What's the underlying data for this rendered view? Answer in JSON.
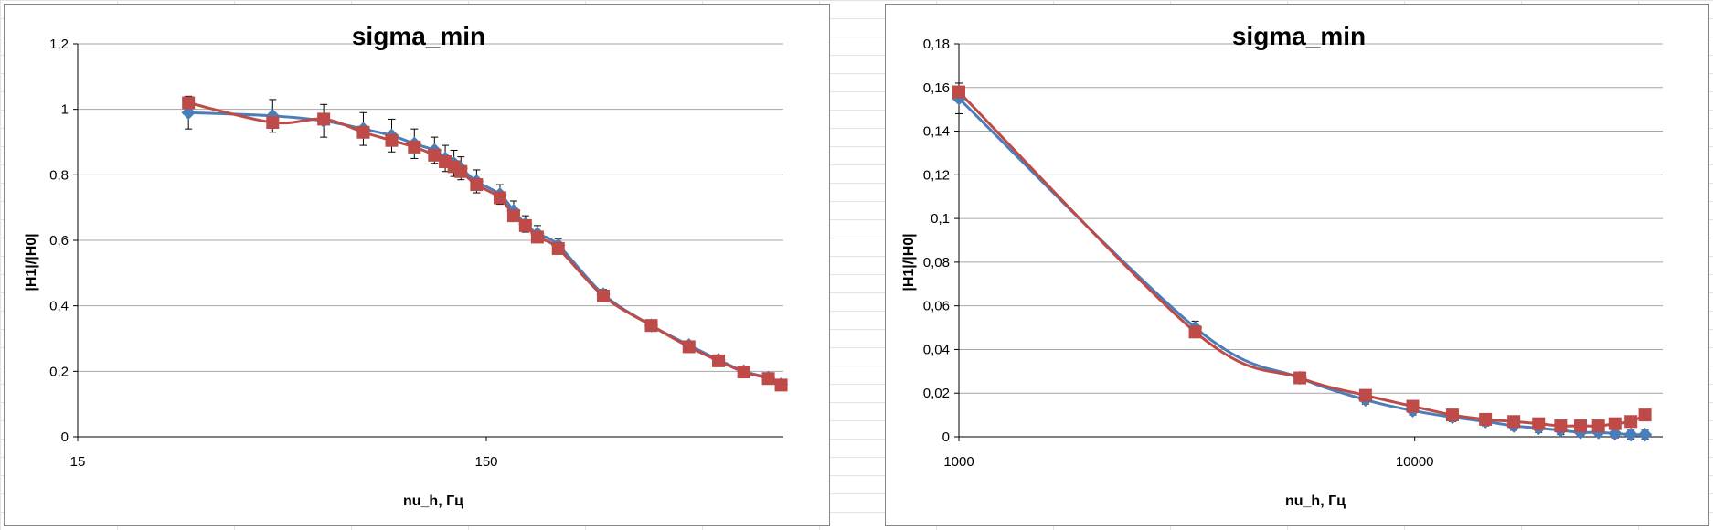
{
  "colors": {
    "series_blue": "#4a7ebb",
    "series_red": "#be4b48",
    "gridline": "#a6a6a6",
    "error_bar": "#000000"
  },
  "chart_data": [
    {
      "type": "line",
      "title": "sigma_min",
      "xlabel": "nu_h, Гц",
      "ylabel": "|H1|/|H0|",
      "x_scale": "log",
      "xlim": [
        15,
        800
      ],
      "ylim": [
        0,
        1.2
      ],
      "x_tick_values": [
        15,
        150
      ],
      "x_tick_labels": [
        "15",
        "150"
      ],
      "y_tick_values": [
        0,
        0.2,
        0.4,
        0.6,
        0.8,
        1,
        1.2
      ],
      "y_tick_labels": [
        "0",
        "0,2",
        "0,4",
        "0,6",
        "0,8",
        "1",
        "1,2"
      ],
      "grid": "horizontal",
      "legend": "none",
      "series": [
        {
          "marker": "diamond",
          "color": "#4a7ebb",
          "x": [
            28,
            45,
            60,
            75,
            88,
            100,
            112,
            119,
            125,
            130,
            142,
            162,
            175,
            187,
            200,
            225,
            290,
            380,
            470,
            555,
            640,
            735,
            790
          ],
          "y": [
            0.99,
            0.98,
            0.965,
            0.94,
            0.92,
            0.895,
            0.875,
            0.85,
            0.835,
            0.82,
            0.78,
            0.74,
            0.69,
            0.65,
            0.62,
            0.585,
            0.435,
            0.34,
            0.28,
            0.235,
            0.2,
            0.18,
            0.16
          ],
          "yerr": [
            0.05,
            0.05,
            0.05,
            0.05,
            0.05,
            0.045,
            0.04,
            0.04,
            0.04,
            0.035,
            0.035,
            0.03,
            0.03,
            0.025,
            0.025,
            0.02,
            0.015,
            0.012,
            0.012,
            0.01,
            0.01,
            0.01,
            0.01
          ]
        },
        {
          "marker": "square",
          "color": "#be4b48",
          "x": [
            28,
            45,
            60,
            75,
            88,
            100,
            112,
            119,
            125,
            130,
            142,
            162,
            175,
            187,
            200,
            225,
            290,
            380,
            470,
            555,
            640,
            735,
            790
          ],
          "y": [
            1.02,
            0.96,
            0.97,
            0.93,
            0.905,
            0.885,
            0.86,
            0.84,
            0.825,
            0.81,
            0.77,
            0.73,
            0.675,
            0.645,
            0.61,
            0.575,
            0.43,
            0.34,
            0.275,
            0.232,
            0.198,
            0.178,
            0.158
          ]
        }
      ]
    },
    {
      "type": "line",
      "title": "sigma_min",
      "xlabel": "nu_h, Гц",
      "ylabel": "|H1|/|H0|",
      "x_scale": "log",
      "xlim": [
        1000,
        35000
      ],
      "ylim": [
        0,
        0.18
      ],
      "x_tick_values": [
        1000,
        10000
      ],
      "x_tick_labels": [
        "1000",
        "10000"
      ],
      "y_tick_values": [
        0,
        0.02,
        0.04,
        0.06,
        0.08,
        0.1,
        0.12,
        0.14,
        0.16,
        0.18
      ],
      "y_tick_labels": [
        "0",
        "0,02",
        "0,04",
        "0,06",
        "0,08",
        "0,1",
        "0,12",
        "0,14",
        "0,16",
        "0,18"
      ],
      "grid": "horizontal",
      "legend": "none",
      "series": [
        {
          "marker": "diamond",
          "color": "#4a7ebb",
          "x": [
            1000,
            3300,
            5600,
            7800,
            9900,
            12100,
            14300,
            16500,
            18700,
            20900,
            23100,
            25300,
            27500,
            29800,
            32000
          ],
          "y": [
            0.155,
            0.05,
            0.027,
            0.017,
            0.012,
            0.009,
            0.007,
            0.005,
            0.004,
            0.003,
            0.002,
            0.002,
            0.0015,
            0.001,
            0.001
          ],
          "yerr": [
            0.007,
            0.003,
            0.002,
            0.002,
            0.002,
            0.002,
            0.002,
            0.002,
            0.002,
            0.002,
            0.002,
            0.002,
            0.002,
            0.002,
            0.002
          ]
        },
        {
          "marker": "square",
          "color": "#be4b48",
          "x": [
            1000,
            3300,
            5600,
            7800,
            9900,
            12100,
            14300,
            16500,
            18700,
            20900,
            23100,
            25300,
            27500,
            29800,
            32000
          ],
          "y": [
            0.158,
            0.048,
            0.027,
            0.019,
            0.014,
            0.01,
            0.008,
            0.007,
            0.006,
            0.005,
            0.005,
            0.005,
            0.006,
            0.007,
            0.01
          ]
        }
      ]
    }
  ]
}
